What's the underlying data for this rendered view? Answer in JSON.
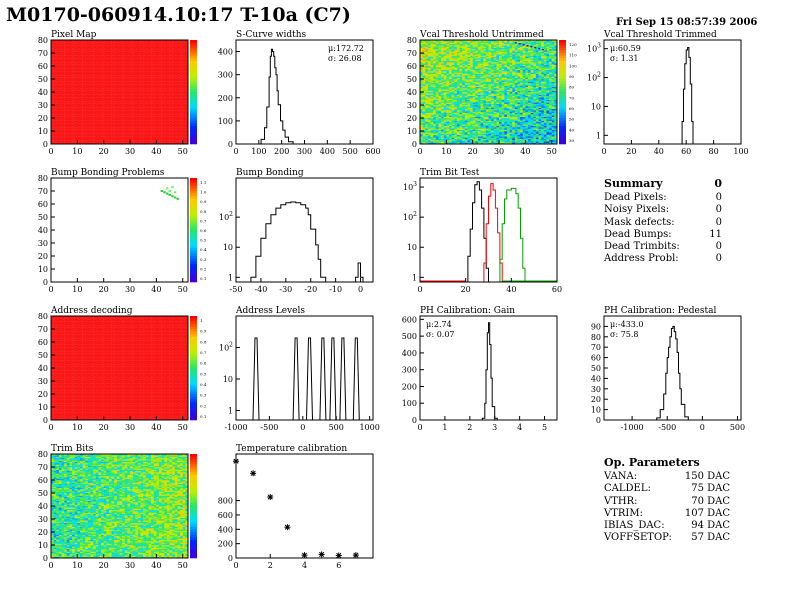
{
  "header": {
    "title": "M0170-060914.10:17 T-10a (C7)",
    "date": "Fri Sep 15 08:57:39 2006"
  },
  "summary": {
    "title": "Summary",
    "total": "0",
    "rows": [
      {
        "label": "Dead Pixels:",
        "value": "0"
      },
      {
        "label": "Noisy Pixels:",
        "value": "0"
      },
      {
        "label": "Mask defects:",
        "value": "0"
      },
      {
        "label": "Dead Bumps:",
        "value": "11"
      },
      {
        "label": "Dead Trimbits:",
        "value": "0"
      },
      {
        "label": "Address Probl:",
        "value": "0"
      }
    ]
  },
  "op_parameters": {
    "title": "Op. Parameters",
    "rows": [
      {
        "label": "VANA:",
        "value": "150 DAC"
      },
      {
        "label": "CALDEL:",
        "value": "75 DAC"
      },
      {
        "label": "VTHR:",
        "value": "70 DAC"
      },
      {
        "label": "VTRIM:",
        "value": "107 DAC"
      },
      {
        "label": "IBIAS_DAC:",
        "value": "94 DAC"
      },
      {
        "label": "VOFFSETOP:",
        "value": "57 DAC"
      }
    ]
  },
  "colors": {
    "map_red": "#ff1a1a",
    "hist_line": "#000000",
    "trim_red": "#ff0000",
    "trim_green": "#00a000"
  },
  "chart_data": [
    {
      "id": "pixel-map",
      "type": "heatmap",
      "title": "Pixel Map",
      "xlim": [
        0,
        52
      ],
      "ylim": [
        0,
        80
      ],
      "xticks": [
        0,
        10,
        20,
        30,
        40,
        50
      ],
      "yticks": [
        0,
        10,
        20,
        30,
        40,
        50,
        60,
        70,
        80
      ],
      "pattern": "uniform-red",
      "palette": true
    },
    {
      "id": "s-curve-widths",
      "type": "line",
      "title": "S-Curve widths",
      "xlim": [
        0,
        600
      ],
      "ylim": [
        0,
        450
      ],
      "xticks": [
        0,
        100,
        200,
        300,
        400,
        500,
        600
      ],
      "yticks": [
        0,
        100,
        200,
        300,
        400
      ],
      "stats": [
        "μ:172.72",
        "σ: 26.08"
      ],
      "series": [
        {
          "color": "#000000",
          "x": [
            90,
            110,
            125,
            135,
            145,
            150,
            155,
            160,
            165,
            170,
            175,
            180,
            185,
            195,
            205,
            215,
            230,
            250
          ],
          "y": [
            0,
            20,
            70,
            160,
            290,
            380,
            410,
            400,
            380,
            330,
            300,
            230,
            170,
            100,
            60,
            30,
            10,
            0
          ]
        }
      ]
    },
    {
      "id": "vcal-untrimmed",
      "type": "heatmap",
      "title": "Vcal Threshold Untrimmed",
      "xlim": [
        0,
        52
      ],
      "ylim": [
        0,
        80
      ],
      "xticks": [
        0,
        10,
        20,
        30,
        40,
        50
      ],
      "yticks": [
        0,
        10,
        20,
        30,
        40,
        50,
        60,
        70,
        80
      ],
      "pattern": "noisy-gradient",
      "palette": true,
      "palette_labels": [
        "120",
        "110",
        "100",
        "90",
        "80",
        "70",
        "60",
        "50",
        "40",
        "30"
      ]
    },
    {
      "id": "vcal-trimmed",
      "type": "line",
      "title": "Vcal Threshold Trimmed",
      "xlim": [
        0,
        100
      ],
      "ylim": [
        0.5,
        2000
      ],
      "log_y": true,
      "xticks": [
        0,
        20,
        40,
        60,
        80,
        100
      ],
      "yticks": [
        1,
        10,
        100,
        1000
      ],
      "stats": [
        "μ:60.59",
        "σ: 1.31"
      ],
      "series": [
        {
          "color": "#000000",
          "x": [
            55,
            57,
            58,
            59,
            60,
            61,
            62,
            63,
            64,
            65
          ],
          "y": [
            0.5,
            3,
            40,
            300,
            900,
            1100,
            500,
            60,
            3,
            0.5
          ]
        }
      ]
    },
    {
      "id": "bump-bonding-problems",
      "type": "scatter",
      "title": "Bump Bonding Problems",
      "xlim": [
        0,
        52
      ],
      "ylim": [
        0,
        80
      ],
      "xticks": [
        0,
        10,
        20,
        30,
        40,
        50
      ],
      "yticks": [
        0,
        10,
        20,
        30,
        40,
        50,
        60,
        70,
        80
      ],
      "palette": true,
      "palette_labels": [
        "1.1",
        "1.0",
        "0.9",
        "0.8",
        "0.7",
        "0.6",
        "0.5",
        "0.4",
        "0.3",
        "0.2",
        "0.1"
      ],
      "x": [
        42,
        43,
        44,
        45,
        46,
        47,
        48,
        46,
        44,
        45,
        47
      ],
      "y": [
        70,
        69,
        68,
        67,
        66,
        65,
        64,
        73,
        72,
        70,
        69
      ]
    },
    {
      "id": "bump-bonding",
      "type": "line",
      "title": "Bump Bonding",
      "xlim": [
        -50,
        5
      ],
      "ylim": [
        0.7,
        2000
      ],
      "log_y": true,
      "xticks": [
        -50,
        -40,
        -30,
        -20,
        -10,
        0
      ],
      "yticks": [
        1,
        10,
        100
      ],
      "series": [
        {
          "color": "#000000",
          "x": [
            -50,
            -47,
            -44,
            -42,
            -40,
            -38,
            -36,
            -34,
            -32,
            -30,
            -28,
            -26,
            -24,
            -22,
            -21,
            -20,
            -18,
            -17,
            -16,
            -14,
            -12,
            -10,
            -8,
            -5,
            -3,
            -2,
            -1,
            0,
            1
          ],
          "y": [
            0.7,
            0.7,
            1,
            5,
            20,
            60,
            120,
            200,
            260,
            300,
            320,
            300,
            260,
            200,
            120,
            40,
            12,
            4,
            1,
            0.7,
            0.7,
            0.7,
            0.7,
            0.7,
            0.7,
            1,
            3,
            1,
            0.7
          ]
        }
      ]
    },
    {
      "id": "trim-bit-test",
      "type": "line",
      "title": "Trim Bit Test",
      "xlim": [
        0,
        60
      ],
      "ylim": [
        0.7,
        2000
      ],
      "log_y": true,
      "xticks": [
        0,
        20,
        40,
        60
      ],
      "yticks": [
        1,
        10,
        100,
        1000
      ],
      "series": [
        {
          "color": "#000000",
          "x": [
            20,
            21,
            22,
            23,
            24,
            25,
            26,
            27,
            28,
            29,
            30
          ],
          "y": [
            0.7,
            5,
            40,
            300,
            1200,
            1500,
            800,
            200,
            20,
            2,
            0.7
          ]
        },
        {
          "color": "#ff0000",
          "x": [
            27,
            28,
            29,
            30,
            31,
            32,
            33,
            34,
            35,
            36
          ],
          "y": [
            0.7,
            3,
            60,
            500,
            1300,
            800,
            200,
            30,
            3,
            0.7
          ]
        },
        {
          "color": "#00a000",
          "x": [
            34,
            35,
            36,
            37,
            38,
            40,
            42,
            43,
            44,
            45,
            46
          ],
          "y": [
            0.7,
            4,
            60,
            400,
            800,
            900,
            600,
            200,
            20,
            2,
            0.7
          ]
        }
      ]
    },
    {
      "id": "address-decoding",
      "type": "heatmap",
      "title": "Address decoding",
      "xlim": [
        0,
        52
      ],
      "ylim": [
        0,
        80
      ],
      "xticks": [
        0,
        10,
        20,
        30,
        40,
        50
      ],
      "yticks": [
        0,
        10,
        20,
        30,
        40,
        50,
        60,
        70,
        80
      ],
      "pattern": "uniform-red",
      "palette": true,
      "palette_labels": [
        "1",
        "0.9",
        "0.8",
        "0.7",
        "0.6",
        "0.5",
        "0.4",
        "0.3",
        "0.2",
        "0.1"
      ]
    },
    {
      "id": "address-levels",
      "type": "line",
      "title": "Address Levels",
      "xlim": [
        -1000,
        1050
      ],
      "ylim": [
        0.5,
        1000
      ],
      "log_y": true,
      "xticks": [
        -1000,
        -500,
        0,
        500,
        1000
      ],
      "yticks": [
        1,
        10,
        100
      ],
      "peaks": [
        -700,
        -100,
        100,
        300,
        450,
        600,
        800
      ],
      "peak_height": 200
    },
    {
      "id": "ph-gain",
      "type": "line",
      "title": "PH Calibration: Gain",
      "xlim": [
        0,
        5.5
      ],
      "ylim": [
        0,
        620
      ],
      "xticks": [
        0,
        1,
        2,
        3,
        4,
        5
      ],
      "yticks": [
        0,
        100,
        200,
        300,
        400,
        500,
        600
      ],
      "stats": [
        "μ:2.74",
        "σ: 0.07"
      ],
      "series": [
        {
          "color": "#000000",
          "x": [
            2.4,
            2.5,
            2.6,
            2.65,
            2.7,
            2.75,
            2.8,
            2.85,
            2.9,
            3.0,
            3.1
          ],
          "y": [
            0,
            10,
            100,
            300,
            520,
            580,
            450,
            250,
            80,
            10,
            0
          ]
        }
      ]
    },
    {
      "id": "ph-pedestal",
      "type": "line",
      "title": "PH Calibration: Pedestal",
      "xlim": [
        -1400,
        550
      ],
      "ylim": [
        0,
        100
      ],
      "xticks": [
        -1000,
        -500,
        0,
        500
      ],
      "yticks": [
        0,
        10,
        20,
        30,
        40,
        50,
        60,
        70,
        80,
        90
      ],
      "stats": [
        "μ:-433.0",
        "σ: 75.8"
      ],
      "series": [
        {
          "color": "#000000",
          "x": [
            -700,
            -650,
            -600,
            -550,
            -520,
            -500,
            -480,
            -460,
            -440,
            -420,
            -400,
            -380,
            -360,
            -340,
            -320,
            -300,
            -250,
            -200
          ],
          "y": [
            0,
            2,
            10,
            25,
            45,
            60,
            70,
            80,
            88,
            90,
            85,
            78,
            65,
            45,
            30,
            15,
            3,
            0
          ]
        }
      ]
    },
    {
      "id": "trim-bits",
      "type": "heatmap",
      "title": "Trim Bits",
      "xlim": [
        0,
        52
      ],
      "ylim": [
        0,
        80
      ],
      "xticks": [
        0,
        10,
        20,
        30,
        40,
        50
      ],
      "yticks": [
        0,
        10,
        20,
        30,
        40,
        50,
        60,
        70,
        80
      ],
      "pattern": "noisy-green",
      "palette": true
    },
    {
      "id": "temperature-calibration",
      "type": "scatter",
      "title": "Temperature calibration",
      "xlim": [
        0,
        8
      ],
      "ylim": [
        0,
        1450
      ],
      "xticks": [
        0,
        2,
        4,
        6
      ],
      "yticks": [
        0,
        200,
        400,
        600,
        800
      ],
      "x": [
        0,
        1,
        2,
        3,
        4,
        5,
        6,
        7
      ],
      "y": [
        1350,
        1180,
        850,
        430,
        40,
        50,
        35,
        40
      ]
    }
  ]
}
